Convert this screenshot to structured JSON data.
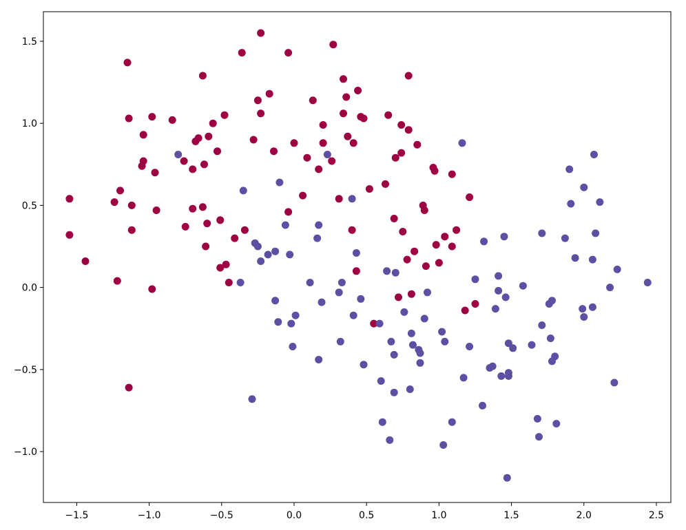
{
  "chart_data": {
    "type": "scatter",
    "title": "",
    "xlabel": "",
    "ylabel": "",
    "xlim": [
      -1.73,
      2.6
    ],
    "ylim": [
      -1.31,
      1.68
    ],
    "x_ticks": [
      -1.5,
      -1.0,
      -0.5,
      0.0,
      0.5,
      1.0,
      1.5,
      2.0,
      2.5
    ],
    "x_tick_labels": [
      "−1.5",
      "−1.0",
      "−0.5",
      "0.0",
      "0.5",
      "1.0",
      "1.5",
      "2.0",
      "2.5"
    ],
    "y_ticks": [
      1.5,
      1.0,
      0.5,
      0.0,
      -0.5,
      -1.0
    ],
    "y_tick_labels": [
      "1.5",
      "1.0",
      "0.5",
      "0.0",
      "−0.5",
      "−1.0"
    ],
    "grid": false,
    "legend": false,
    "series": [
      {
        "color": "#9e0142",
        "points": [
          [
            -1.55,
            0.54
          ],
          [
            -1.55,
            0.32
          ],
          [
            -1.44,
            0.16
          ],
          [
            -1.22,
            0.04
          ],
          [
            -1.15,
            1.37
          ],
          [
            -1.24,
            0.52
          ],
          [
            -1.2,
            0.59
          ],
          [
            -1.14,
            1.03
          ],
          [
            -1.12,
            0.5
          ],
          [
            -1.12,
            0.35
          ],
          [
            -1.04,
            0.93
          ],
          [
            -1.04,
            0.77
          ],
          [
            -1.05,
            0.74
          ],
          [
            -0.98,
            1.04
          ],
          [
            -0.96,
            0.7
          ],
          [
            -0.95,
            0.47
          ],
          [
            -0.98,
            -0.01
          ],
          [
            -1.14,
            -0.61
          ],
          [
            -0.84,
            1.02
          ],
          [
            -0.76,
            0.77
          ],
          [
            -0.75,
            0.37
          ],
          [
            -0.7,
            0.72
          ],
          [
            -0.7,
            0.48
          ],
          [
            -0.68,
            0.89
          ],
          [
            -0.66,
            0.91
          ],
          [
            -0.63,
            0.49
          ],
          [
            -0.62,
            0.75
          ],
          [
            -0.61,
            0.25
          ],
          [
            -0.6,
            0.39
          ],
          [
            -0.59,
            0.92
          ],
          [
            -0.63,
            1.29
          ],
          [
            -0.56,
            1.0
          ],
          [
            -0.53,
            0.83
          ],
          [
            -0.51,
            0.41
          ],
          [
            -0.48,
            1.05
          ],
          [
            -0.51,
            0.12
          ],
          [
            -0.47,
            0.14
          ],
          [
            -0.45,
            0.03
          ],
          [
            -0.41,
            0.3
          ],
          [
            -0.36,
            1.43
          ],
          [
            -0.34,
            0.35
          ],
          [
            -0.28,
            0.9
          ],
          [
            -0.25,
            1.14
          ],
          [
            -0.23,
            1.06
          ],
          [
            -0.23,
            1.55
          ],
          [
            -0.17,
            1.18
          ],
          [
            -0.14,
            0.83
          ],
          [
            -0.04,
            1.43
          ],
          [
            -0.04,
            0.46
          ],
          [
            0.0,
            0.88
          ],
          [
            0.06,
            0.56
          ],
          [
            0.09,
            0.79
          ],
          [
            0.13,
            1.14
          ],
          [
            0.17,
            0.72
          ],
          [
            0.2,
            0.99
          ],
          [
            0.2,
            0.88
          ],
          [
            0.26,
            0.77
          ],
          [
            0.27,
            1.48
          ],
          [
            0.31,
            0.54
          ],
          [
            0.34,
            1.27
          ],
          [
            0.34,
            1.06
          ],
          [
            0.36,
            1.16
          ],
          [
            0.37,
            0.92
          ],
          [
            0.4,
            0.35
          ],
          [
            0.41,
            0.88
          ],
          [
            0.43,
            0.1
          ],
          [
            0.44,
            1.2
          ],
          [
            0.46,
            1.04
          ],
          [
            0.48,
            1.03
          ],
          [
            0.52,
            0.6
          ],
          [
            0.55,
            -0.22
          ],
          [
            0.63,
            0.63
          ],
          [
            0.65,
            1.05
          ],
          [
            0.69,
            0.42
          ],
          [
            0.7,
            0.79
          ],
          [
            0.72,
            -0.06
          ],
          [
            0.74,
            0.99
          ],
          [
            0.74,
            0.82
          ],
          [
            0.75,
            0.34
          ],
          [
            0.78,
            0.17
          ],
          [
            0.79,
            0.96
          ],
          [
            0.79,
            1.29
          ],
          [
            0.81,
            -0.04
          ],
          [
            0.83,
            0.22
          ],
          [
            0.85,
            0.87
          ],
          [
            0.89,
            0.5
          ],
          [
            0.9,
            0.47
          ],
          [
            0.91,
            0.13
          ],
          [
            0.96,
            0.73
          ],
          [
            0.97,
            0.71
          ],
          [
            0.98,
            0.26
          ],
          [
            1.0,
            0.15
          ],
          [
            1.04,
            0.31
          ],
          [
            1.09,
            0.69
          ],
          [
            1.09,
            0.25
          ],
          [
            1.12,
            0.35
          ],
          [
            1.18,
            -0.14
          ],
          [
            1.21,
            0.55
          ],
          [
            1.25,
            -0.1
          ]
        ]
      },
      {
        "color": "#5e4fa2",
        "points": [
          [
            -0.8,
            0.81
          ],
          [
            -0.37,
            0.03
          ],
          [
            -0.35,
            0.59
          ],
          [
            -0.29,
            -0.68
          ],
          [
            -0.27,
            0.27
          ],
          [
            -0.25,
            0.25
          ],
          [
            -0.23,
            0.16
          ],
          [
            -0.18,
            0.2
          ],
          [
            -0.13,
            0.22
          ],
          [
            -0.13,
            -0.08
          ],
          [
            -0.11,
            -0.21
          ],
          [
            -0.1,
            0.64
          ],
          [
            -0.06,
            0.38
          ],
          [
            -0.03,
            0.2
          ],
          [
            -0.02,
            -0.22
          ],
          [
            -0.01,
            -0.36
          ],
          [
            0.01,
            -0.17
          ],
          [
            0.11,
            0.03
          ],
          [
            0.16,
            0.3
          ],
          [
            0.17,
            0.38
          ],
          [
            0.17,
            -0.44
          ],
          [
            0.19,
            -0.09
          ],
          [
            0.23,
            0.81
          ],
          [
            0.31,
            -0.03
          ],
          [
            0.32,
            -0.33
          ],
          [
            0.33,
            0.03
          ],
          [
            0.4,
            0.54
          ],
          [
            0.41,
            -0.17
          ],
          [
            0.43,
            0.21
          ],
          [
            0.46,
            -0.07
          ],
          [
            0.48,
            -0.47
          ],
          [
            0.59,
            -0.22
          ],
          [
            0.6,
            -0.57
          ],
          [
            0.61,
            -0.82
          ],
          [
            0.64,
            0.1
          ],
          [
            0.66,
            -0.93
          ],
          [
            0.67,
            -0.33
          ],
          [
            0.69,
            -0.41
          ],
          [
            0.69,
            -0.64
          ],
          [
            0.7,
            0.09
          ],
          [
            0.76,
            -0.15
          ],
          [
            0.8,
            -0.62
          ],
          [
            0.81,
            -0.28
          ],
          [
            0.82,
            -0.35
          ],
          [
            0.86,
            -0.38
          ],
          [
            0.87,
            -0.46
          ],
          [
            0.87,
            -0.4
          ],
          [
            0.9,
            -0.19
          ],
          [
            0.92,
            -0.03
          ],
          [
            1.02,
            -0.27
          ],
          [
            1.03,
            -0.96
          ],
          [
            1.04,
            -0.33
          ],
          [
            1.09,
            -0.82
          ],
          [
            1.16,
            0.88
          ],
          [
            1.17,
            -0.55
          ],
          [
            1.21,
            -0.36
          ],
          [
            1.25,
            0.05
          ],
          [
            1.3,
            -0.72
          ],
          [
            1.31,
            0.28
          ],
          [
            1.35,
            -0.49
          ],
          [
            1.37,
            -0.48
          ],
          [
            1.39,
            -0.13
          ],
          [
            1.41,
            -0.02
          ],
          [
            1.41,
            0.07
          ],
          [
            1.43,
            -0.54
          ],
          [
            1.45,
            0.31
          ],
          [
            1.46,
            -0.06
          ],
          [
            1.47,
            -1.16
          ],
          [
            1.48,
            -0.34
          ],
          [
            1.48,
            -0.54
          ],
          [
            1.48,
            -0.52
          ],
          [
            1.51,
            -0.37
          ],
          [
            1.58,
            0.01
          ],
          [
            1.64,
            -0.35
          ],
          [
            1.68,
            -0.8
          ],
          [
            1.69,
            -0.91
          ],
          [
            1.71,
            0.33
          ],
          [
            1.71,
            -0.23
          ],
          [
            1.76,
            -0.1
          ],
          [
            1.77,
            -0.31
          ],
          [
            1.78,
            -0.45
          ],
          [
            1.78,
            -0.08
          ],
          [
            1.8,
            -0.42
          ],
          [
            1.81,
            -0.83
          ],
          [
            1.87,
            0.3
          ],
          [
            1.9,
            0.72
          ],
          [
            1.91,
            0.51
          ],
          [
            1.94,
            0.18
          ],
          [
            1.99,
            -0.13
          ],
          [
            2.0,
            -0.18
          ],
          [
            2.0,
            0.61
          ],
          [
            2.06,
            -0.12
          ],
          [
            2.06,
            0.17
          ],
          [
            2.07,
            0.81
          ],
          [
            2.08,
            0.33
          ],
          [
            2.11,
            0.52
          ],
          [
            2.18,
            0.0
          ],
          [
            2.21,
            -0.58
          ],
          [
            2.23,
            0.11
          ],
          [
            2.44,
            0.03
          ]
        ]
      }
    ]
  }
}
